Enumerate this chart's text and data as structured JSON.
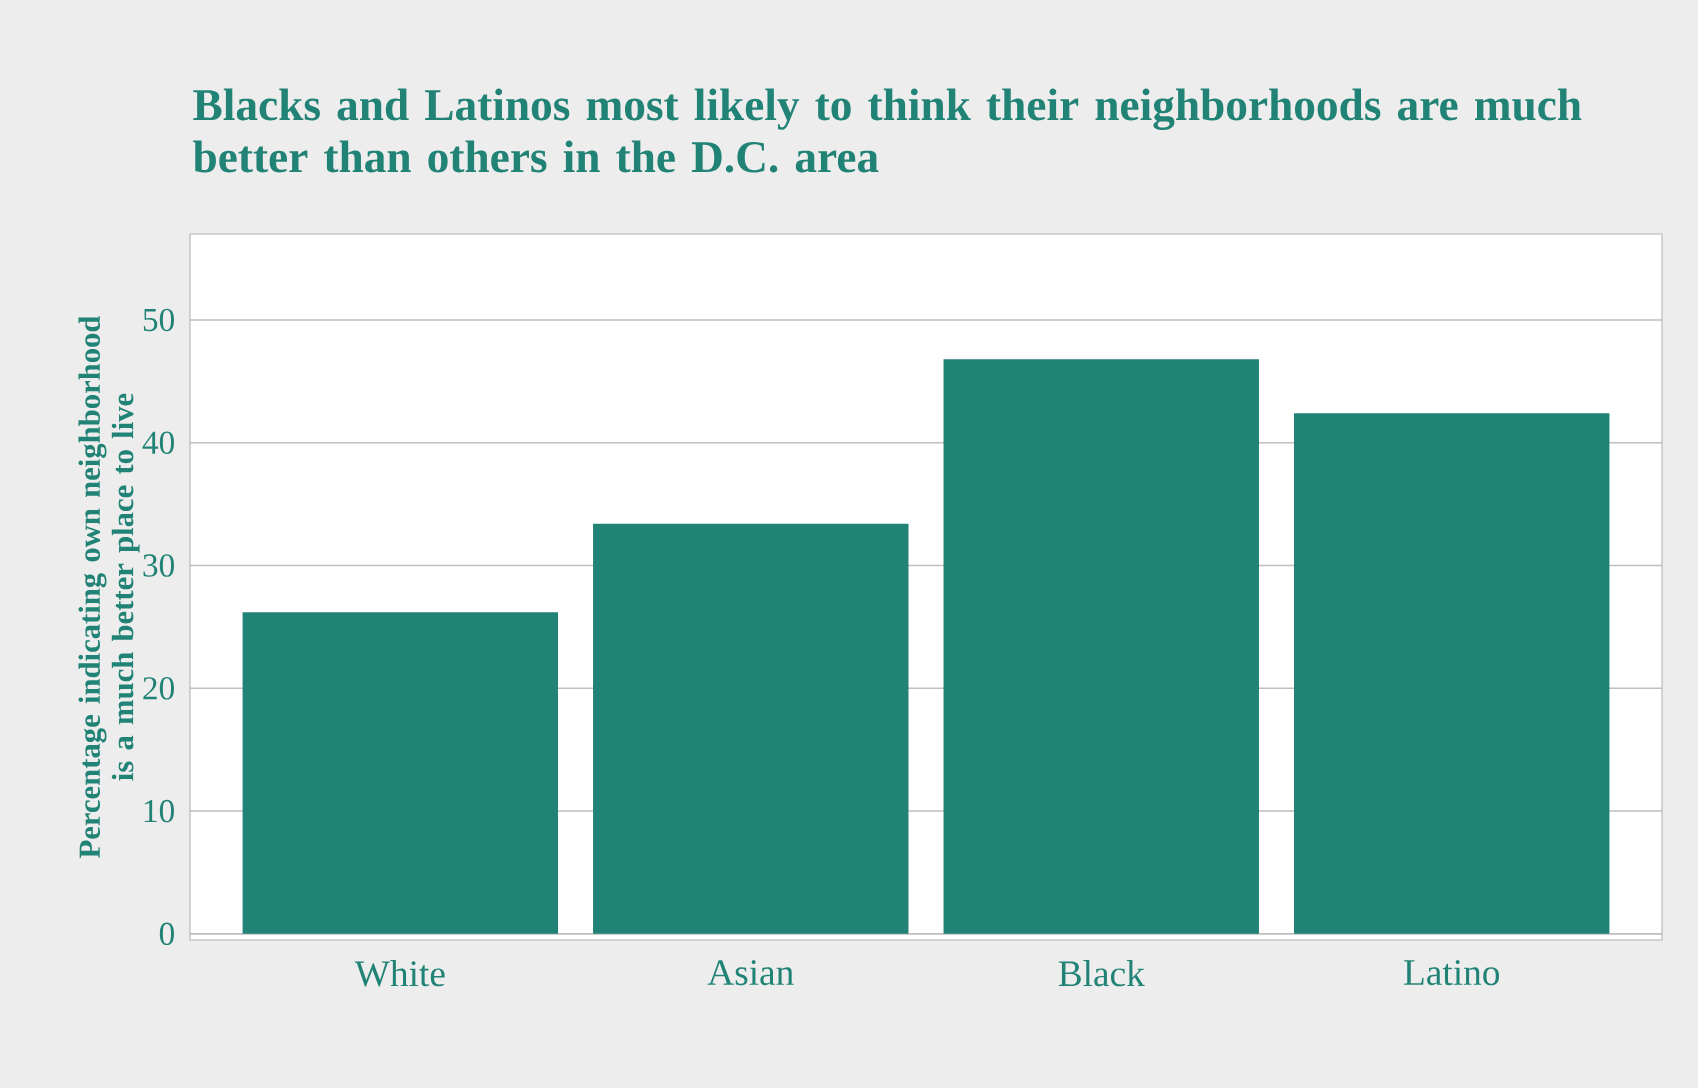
{
  "chart_data": {
    "type": "bar",
    "title": "Blacks and Latinos most likely to think their neighborhoods are much better than others in the D.C. area",
    "ylabel": "Percentage indicating own neighborhood is a much better place to live",
    "categories": [
      "White",
      "Asian",
      "Black",
      "Latino"
    ],
    "values": [
      26.2,
      33.4,
      46.8,
      42.4
    ],
    "color": "#218276",
    "ylim": [
      -0.5,
      57
    ],
    "yticks": [
      0,
      10,
      20,
      30,
      40,
      50
    ],
    "grid": "y"
  }
}
